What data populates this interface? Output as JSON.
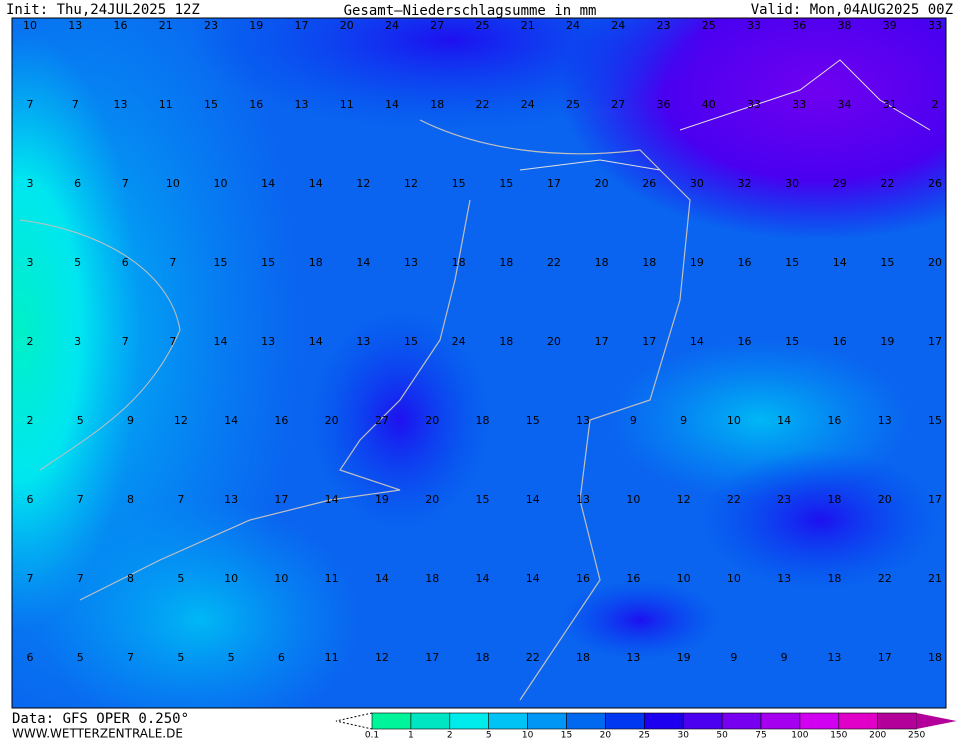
{
  "header": {
    "init": "Init: Thu,24JUL2025 12Z",
    "title": "Gesamt–Niederschlagsumme in mm",
    "valid": "Valid: Mon,04AUG2025 00Z"
  },
  "grid_values": [
    [
      10,
      13,
      16,
      21,
      23,
      19,
      17,
      20,
      24,
      27,
      25,
      21,
      24,
      24,
      23,
      25,
      33,
      36,
      38,
      39,
      33
    ],
    [
      7,
      7,
      13,
      11,
      15,
      16,
      13,
      11,
      14,
      18,
      22,
      24,
      25,
      27,
      36,
      40,
      33,
      33,
      34,
      31,
      2
    ],
    [
      3,
      6,
      7,
      10,
      10,
      14,
      14,
      12,
      12,
      15,
      15,
      17,
      20,
      26,
      30,
      32,
      30,
      29,
      22,
      26
    ],
    [
      3,
      5,
      6,
      7,
      15,
      15,
      18,
      14,
      13,
      18,
      18,
      22,
      18,
      18,
      19,
      16,
      15,
      14,
      15,
      20
    ],
    [
      2,
      3,
      7,
      7,
      14,
      13,
      14,
      13,
      15,
      24,
      18,
      20,
      17,
      17,
      14,
      16,
      15,
      16,
      19,
      17
    ],
    [
      2,
      5,
      9,
      12,
      14,
      16,
      20,
      27,
      20,
      18,
      15,
      13,
      9,
      9,
      10,
      14,
      16,
      13,
      15
    ],
    [
      6,
      7,
      8,
      7,
      13,
      17,
      14,
      19,
      20,
      15,
      14,
      13,
      10,
      12,
      22,
      23,
      18,
      20,
      17
    ],
    [
      7,
      7,
      8,
      5,
      10,
      10,
      11,
      14,
      18,
      14,
      14,
      16,
      16,
      10,
      10,
      13,
      18,
      22,
      21
    ],
    [
      6,
      5,
      7,
      5,
      5,
      6,
      11,
      12,
      17,
      18,
      22,
      18,
      13,
      19,
      9,
      9,
      13,
      17,
      18
    ]
  ],
  "legend": {
    "labels": [
      0.1,
      1,
      2,
      5,
      10,
      15,
      20,
      25,
      30,
      50,
      75,
      100,
      150,
      200,
      250
    ],
    "colors": [
      "#00f59b",
      "#00e6c3",
      "#00ebeb",
      "#00c3f5",
      "#0096f5",
      "#0069f0",
      "#0037f0",
      "#1e00f0",
      "#4b00f0",
      "#7800f0",
      "#a500f0",
      "#d200f0",
      "#e100c8",
      "#b4009b"
    ]
  },
  "footer": {
    "data": "Data: GFS OPER 0.250°",
    "site": "WWW.WETTERZENTRALE.DE"
  }
}
